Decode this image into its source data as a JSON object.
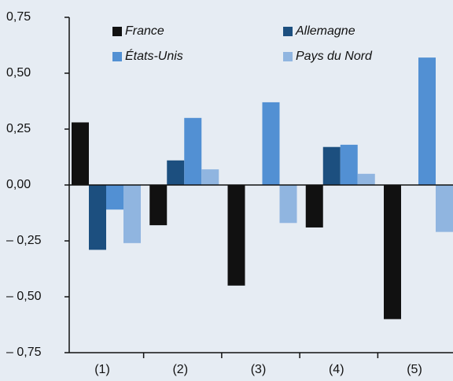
{
  "chart_data": {
    "type": "bar",
    "categories": [
      "(1)",
      "(2)",
      "(3)",
      "(4)",
      "(5)"
    ],
    "series": [
      {
        "name": "France",
        "color": "#111111",
        "values": [
          0.28,
          -0.18,
          -0.45,
          -0.19,
          -0.6
        ]
      },
      {
        "name": "Allemagne",
        "color": "#1c4f7f",
        "values": [
          -0.29,
          0.11,
          null,
          0.17,
          null
        ]
      },
      {
        "name": "États-Unis",
        "color": "#5290d3",
        "values": [
          -0.11,
          0.3,
          0.37,
          0.18,
          0.57
        ]
      },
      {
        "name": "Pays du Nord",
        "color": "#90b5e0",
        "values": [
          -0.26,
          0.07,
          -0.17,
          0.05,
          -0.21
        ]
      }
    ],
    "ylim": [
      -0.75,
      0.75
    ],
    "yticks": [
      {
        "value": 0.75,
        "label": "0,75"
      },
      {
        "value": 0.5,
        "label": "0,50"
      },
      {
        "value": 0.25,
        "label": "0,25"
      },
      {
        "value": 0,
        "label": "0,00"
      },
      {
        "value": -0.25,
        "label": "– 0,25"
      },
      {
        "value": -0.5,
        "label": "– 0,50"
      },
      {
        "value": -0.75,
        "label": "– 0,75"
      }
    ]
  }
}
